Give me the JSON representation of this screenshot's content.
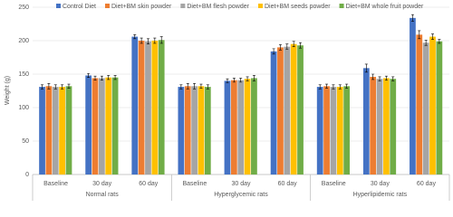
{
  "chart_data": {
    "type": "bar",
    "y_label": "Weight (g)",
    "categories": [
      "Baseline",
      "30 day",
      "60 day",
      "Baseline",
      "30 day",
      "60 day",
      "Baseline",
      "30 day",
      "60 day"
    ],
    "groups": [
      "Normal rats",
      "Hyperglycemic rats",
      "Hyperlipidemic rats"
    ],
    "series": [
      {
        "name": "Control Diet",
        "color": "#4472c4",
        "values": [
          131,
          148,
          206,
          131,
          140,
          184,
          131,
          159,
          234
        ],
        "errors": [
          3,
          3,
          3,
          3,
          3,
          4,
          3,
          6,
          5
        ]
      },
      {
        "name": "Diet+BM skin powder",
        "color": "#ed7d31",
        "values": [
          132,
          144,
          200,
          132,
          141,
          190,
          132,
          146,
          209
        ],
        "errors": [
          4,
          3,
          4,
          4,
          3,
          4,
          3,
          4,
          6
        ]
      },
      {
        "name": "Diet+BM flesh powder",
        "color": "#a5a5a5",
        "values": [
          131,
          144,
          199,
          132,
          141,
          191,
          131,
          143,
          197
        ],
        "errors": [
          3,
          3,
          4,
          4,
          3,
          4,
          3,
          3,
          4
        ]
      },
      {
        "name": "Diet+BM seeds powder",
        "color": "#ffc000",
        "values": [
          131,
          145,
          200,
          132,
          143,
          195,
          131,
          144,
          206
        ],
        "errors": [
          3,
          3,
          4,
          3,
          3,
          4,
          3,
          3,
          4
        ]
      },
      {
        "name": "Diet+BM whole fruit powder",
        "color": "#70ad47",
        "values": [
          132,
          145,
          201,
          131,
          144,
          193,
          132,
          143,
          199
        ],
        "errors": [
          3,
          3,
          5,
          3,
          4,
          4,
          3,
          3,
          3
        ]
      }
    ],
    "ylim": [
      0,
      250
    ],
    "yticks": [
      0,
      50,
      100,
      150,
      200,
      250
    ],
    "grid": true,
    "legend": "top"
  }
}
